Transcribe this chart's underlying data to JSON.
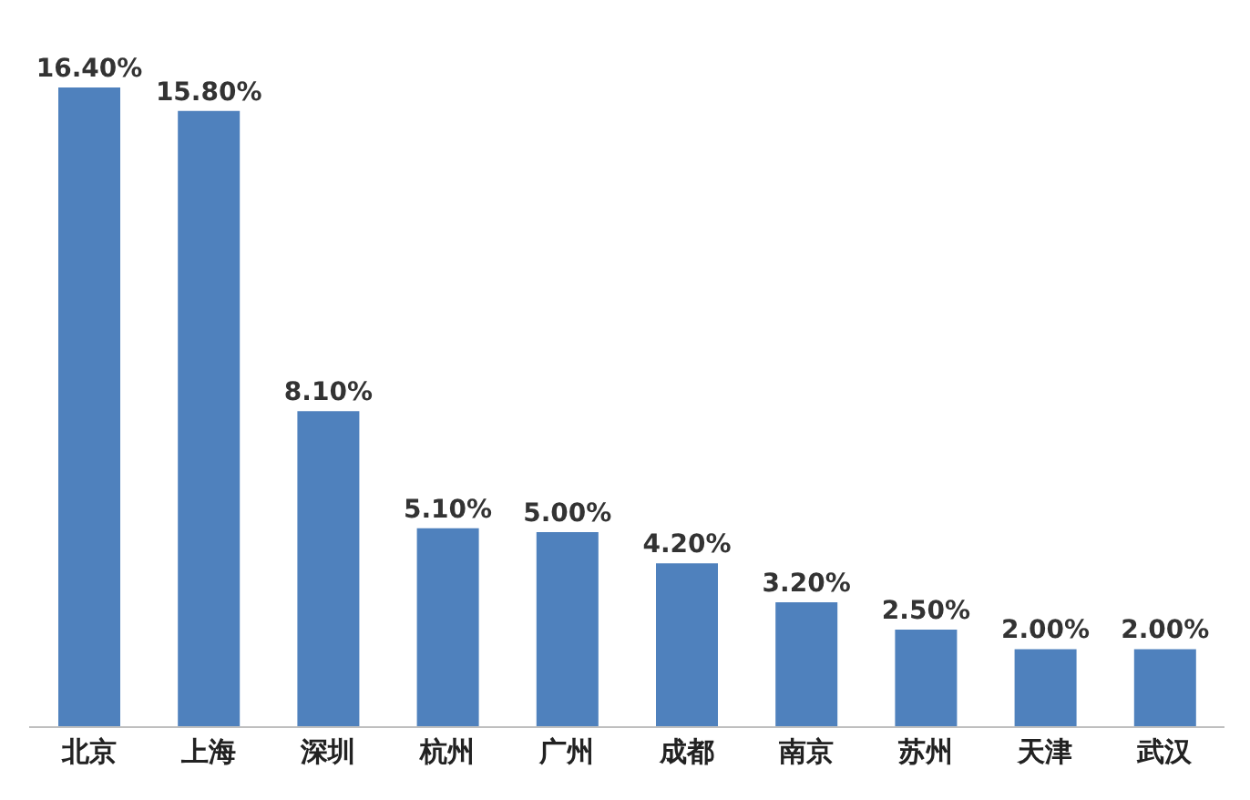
{
  "chart_data": {
    "type": "bar",
    "categories": [
      "北京",
      "上海",
      "深圳",
      "杭州",
      "广州",
      "成都",
      "南京",
      "苏州",
      "天津",
      "武汉"
    ],
    "values": [
      16.4,
      15.8,
      8.1,
      5.1,
      5.0,
      4.2,
      3.2,
      2.5,
      2.0,
      2.0
    ],
    "value_labels": [
      "16.40%",
      "15.80%",
      "8.10%",
      "5.10%",
      "5.00%",
      "4.20%",
      "3.20%",
      "2.50%",
      "2.00%",
      "2.00%"
    ],
    "color": "#4f81bd",
    "tick_labels": "x"
  }
}
